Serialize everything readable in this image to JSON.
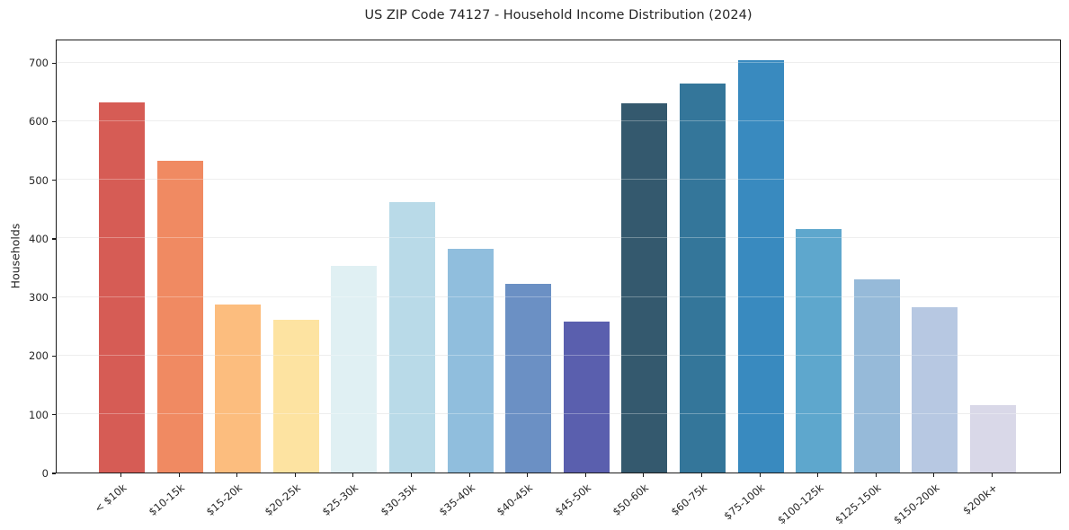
{
  "title": "US ZIP Code 74127 - Household Income Distribution (2024)",
  "chart_data": {
    "type": "bar",
    "title": "US ZIP Code 74127 - Household Income Distribution (2024)",
    "xlabel": "",
    "ylabel": "Households",
    "ylim": [
      0,
      740
    ],
    "yticks": [
      0,
      100,
      200,
      300,
      400,
      500,
      600,
      700
    ],
    "grid": "horizontal",
    "legend": "none",
    "categories": [
      "< $10k",
      "$10-15k",
      "$15-20k",
      "$20-25k",
      "$25-30k",
      "$30-35k",
      "$35-40k",
      "$40-45k",
      "$45-50k",
      "$50-60k",
      "$60-75k",
      "$75-100k",
      "$100-125k",
      "$125-150k",
      "$150-200k",
      "$200k+"
    ],
    "values": [
      632,
      532,
      287,
      260,
      352,
      462,
      382,
      322,
      258,
      630,
      663,
      704,
      416,
      330,
      282,
      115
    ],
    "bar_colors": [
      "#d65c55",
      "#f08a62",
      "#fcbd7e",
      "#fde3a1",
      "#e0f0f3",
      "#b9dae8",
      "#90bedd",
      "#6b90c4",
      "#5a5fae",
      "#34596e",
      "#34769a",
      "#398abf",
      "#5ea7cd",
      "#96bad9",
      "#b7c8e2",
      "#d9d8e8"
    ]
  },
  "colors": {
    "background": "#ffffff",
    "spine": "#1a1a1a",
    "grid": "#e7e7e7",
    "text": "#262626"
  }
}
